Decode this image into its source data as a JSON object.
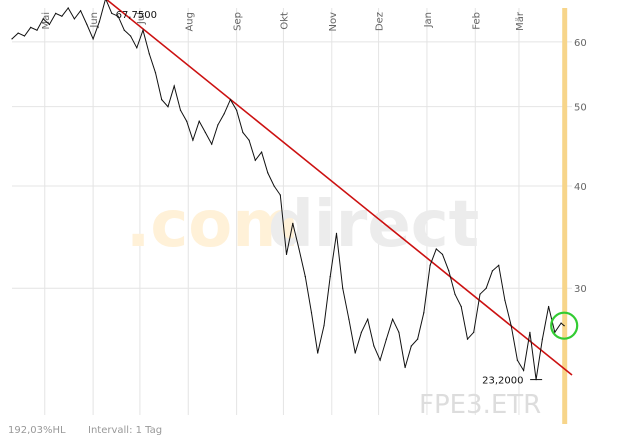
{
  "chart_data": {
    "type": "line",
    "title": "",
    "xlabel": "",
    "ylabel": "",
    "y_scale": "log",
    "ylim": [
      21,
      66
    ],
    "yticks": [
      30,
      40,
      50,
      60
    ],
    "months": [
      "Mai",
      "Jun",
      "Jul",
      "Aug",
      "Sep",
      "Okt",
      "Nov",
      "Dez",
      "Jan",
      "Feb",
      "Mär"
    ],
    "month_dates": [
      "2010-05-01",
      "2010-06-01",
      "2010-07-01",
      "2010-08-01",
      "2010-09-01",
      "2010-10-01",
      "2010-11-01",
      "2010-12-01",
      "2011-01-01",
      "2011-02-01",
      "2011-03-01"
    ],
    "xlim": [
      "2010-04-10",
      "2011-04-04"
    ],
    "current_date": "2011-03-30",
    "grid": true,
    "series": [
      {
        "values": [
          [
            "2010-04-10",
            60.5
          ],
          [
            "2010-04-14",
            61.5
          ],
          [
            "2010-04-18",
            61.0
          ],
          [
            "2010-04-22",
            62.5
          ],
          [
            "2010-04-26",
            62.0
          ],
          [
            "2010-04-30",
            64.0
          ],
          [
            "2010-05-04",
            63.0
          ],
          [
            "2010-05-08",
            65.0
          ],
          [
            "2010-05-12",
            64.5
          ],
          [
            "2010-05-16",
            66.0
          ],
          [
            "2010-05-20",
            64.0
          ],
          [
            "2010-05-24",
            65.5
          ],
          [
            "2010-05-28",
            63.0
          ],
          [
            "2010-06-01",
            60.5
          ],
          [
            "2010-06-05",
            63.5
          ],
          [
            "2010-06-09",
            67.75
          ],
          [
            "2010-06-13",
            65.0
          ],
          [
            "2010-06-17",
            64.5
          ],
          [
            "2010-06-21",
            62.0
          ],
          [
            "2010-06-25",
            61.0
          ],
          [
            "2010-06-29",
            59.0
          ],
          [
            "2010-07-03",
            62.0
          ],
          [
            "2010-07-07",
            58.0
          ],
          [
            "2010-07-11",
            55.0
          ],
          [
            "2010-07-15",
            51.0
          ],
          [
            "2010-07-19",
            50.0
          ],
          [
            "2010-07-23",
            53.0
          ],
          [
            "2010-07-27",
            49.5
          ],
          [
            "2010-07-31",
            48.0
          ],
          [
            "2010-08-04",
            45.5
          ],
          [
            "2010-08-08",
            48.0
          ],
          [
            "2010-08-12",
            46.5
          ],
          [
            "2010-08-16",
            45.0
          ],
          [
            "2010-08-20",
            47.5
          ],
          [
            "2010-08-24",
            49.0
          ],
          [
            "2010-08-28",
            51.0
          ],
          [
            "2010-09-01",
            49.5
          ],
          [
            "2010-09-05",
            46.5
          ],
          [
            "2010-09-09",
            45.5
          ],
          [
            "2010-09-13",
            43.0
          ],
          [
            "2010-09-17",
            44.0
          ],
          [
            "2010-09-21",
            41.5
          ],
          [
            "2010-09-25",
            40.0
          ],
          [
            "2010-09-29",
            39.0
          ],
          [
            "2010-10-03",
            33.0
          ],
          [
            "2010-10-07",
            36.0
          ],
          [
            "2010-10-11",
            33.5
          ],
          [
            "2010-10-15",
            31.0
          ],
          [
            "2010-10-19",
            28.0
          ],
          [
            "2010-10-23",
            25.0
          ],
          [
            "2010-10-27",
            27.0
          ],
          [
            "2010-10-31",
            31.0
          ],
          [
            "2010-11-04",
            35.0
          ],
          [
            "2010-11-08",
            30.0
          ],
          [
            "2010-11-12",
            27.5
          ],
          [
            "2010-11-16",
            25.0
          ],
          [
            "2010-11-20",
            26.5
          ],
          [
            "2010-11-24",
            27.5
          ],
          [
            "2010-11-28",
            25.5
          ],
          [
            "2010-12-02",
            24.5
          ],
          [
            "2010-12-06",
            26.0
          ],
          [
            "2010-12-10",
            27.5
          ],
          [
            "2010-12-14",
            26.5
          ],
          [
            "2010-12-18",
            24.0
          ],
          [
            "2010-12-22",
            25.5
          ],
          [
            "2010-12-26",
            26.0
          ],
          [
            "2010-12-30",
            28.0
          ],
          [
            "2011-01-03",
            32.0
          ],
          [
            "2011-01-07",
            33.5
          ],
          [
            "2011-01-11",
            33.0
          ],
          [
            "2011-01-15",
            31.5
          ],
          [
            "2011-01-19",
            29.5
          ],
          [
            "2011-01-23",
            28.5
          ],
          [
            "2011-01-27",
            26.0
          ],
          [
            "2011-01-31",
            26.5
          ],
          [
            "2011-02-04",
            29.5
          ],
          [
            "2011-02-08",
            30.0
          ],
          [
            "2011-02-12",
            31.5
          ],
          [
            "2011-02-16",
            32.0
          ],
          [
            "2011-02-20",
            29.0
          ],
          [
            "2011-02-24",
            27.0
          ],
          [
            "2011-02-28",
            24.5
          ],
          [
            "2011-03-04",
            23.8
          ],
          [
            "2011-03-08",
            26.5
          ],
          [
            "2011-03-12",
            23.2
          ],
          [
            "2011-03-16",
            26.0
          ],
          [
            "2011-03-20",
            28.5
          ],
          [
            "2011-03-24",
            26.5
          ],
          [
            "2011-03-28",
            27.2
          ],
          [
            "2011-03-30",
            27.0
          ]
        ]
      }
    ],
    "trendline": {
      "from": [
        "2010-06-09",
        67.75
      ],
      "to": [
        "2011-04-04",
        23.5
      ]
    },
    "annotations": [
      {
        "text": "67,7500",
        "date": "2010-06-09",
        "value": 67.75
      },
      {
        "text": "23,2000",
        "date": "2011-03-12",
        "value": 23.2
      }
    ],
    "highlight_circle": {
      "date": "2011-03-30",
      "value": 27.0
    },
    "colors": {
      "line": "#111111",
      "trendline": "#cc1111",
      "circle": "#33cc33",
      "current_marker": "#f7d58a",
      "grid": "#e4e4e4"
    }
  },
  "watermark": {
    "part1": ".com",
    "part2": "direct"
  },
  "symbol": "FPE3.ETR",
  "footer": {
    "performance": "192,03%HL",
    "interval": "Intervall: 1 Tag"
  }
}
